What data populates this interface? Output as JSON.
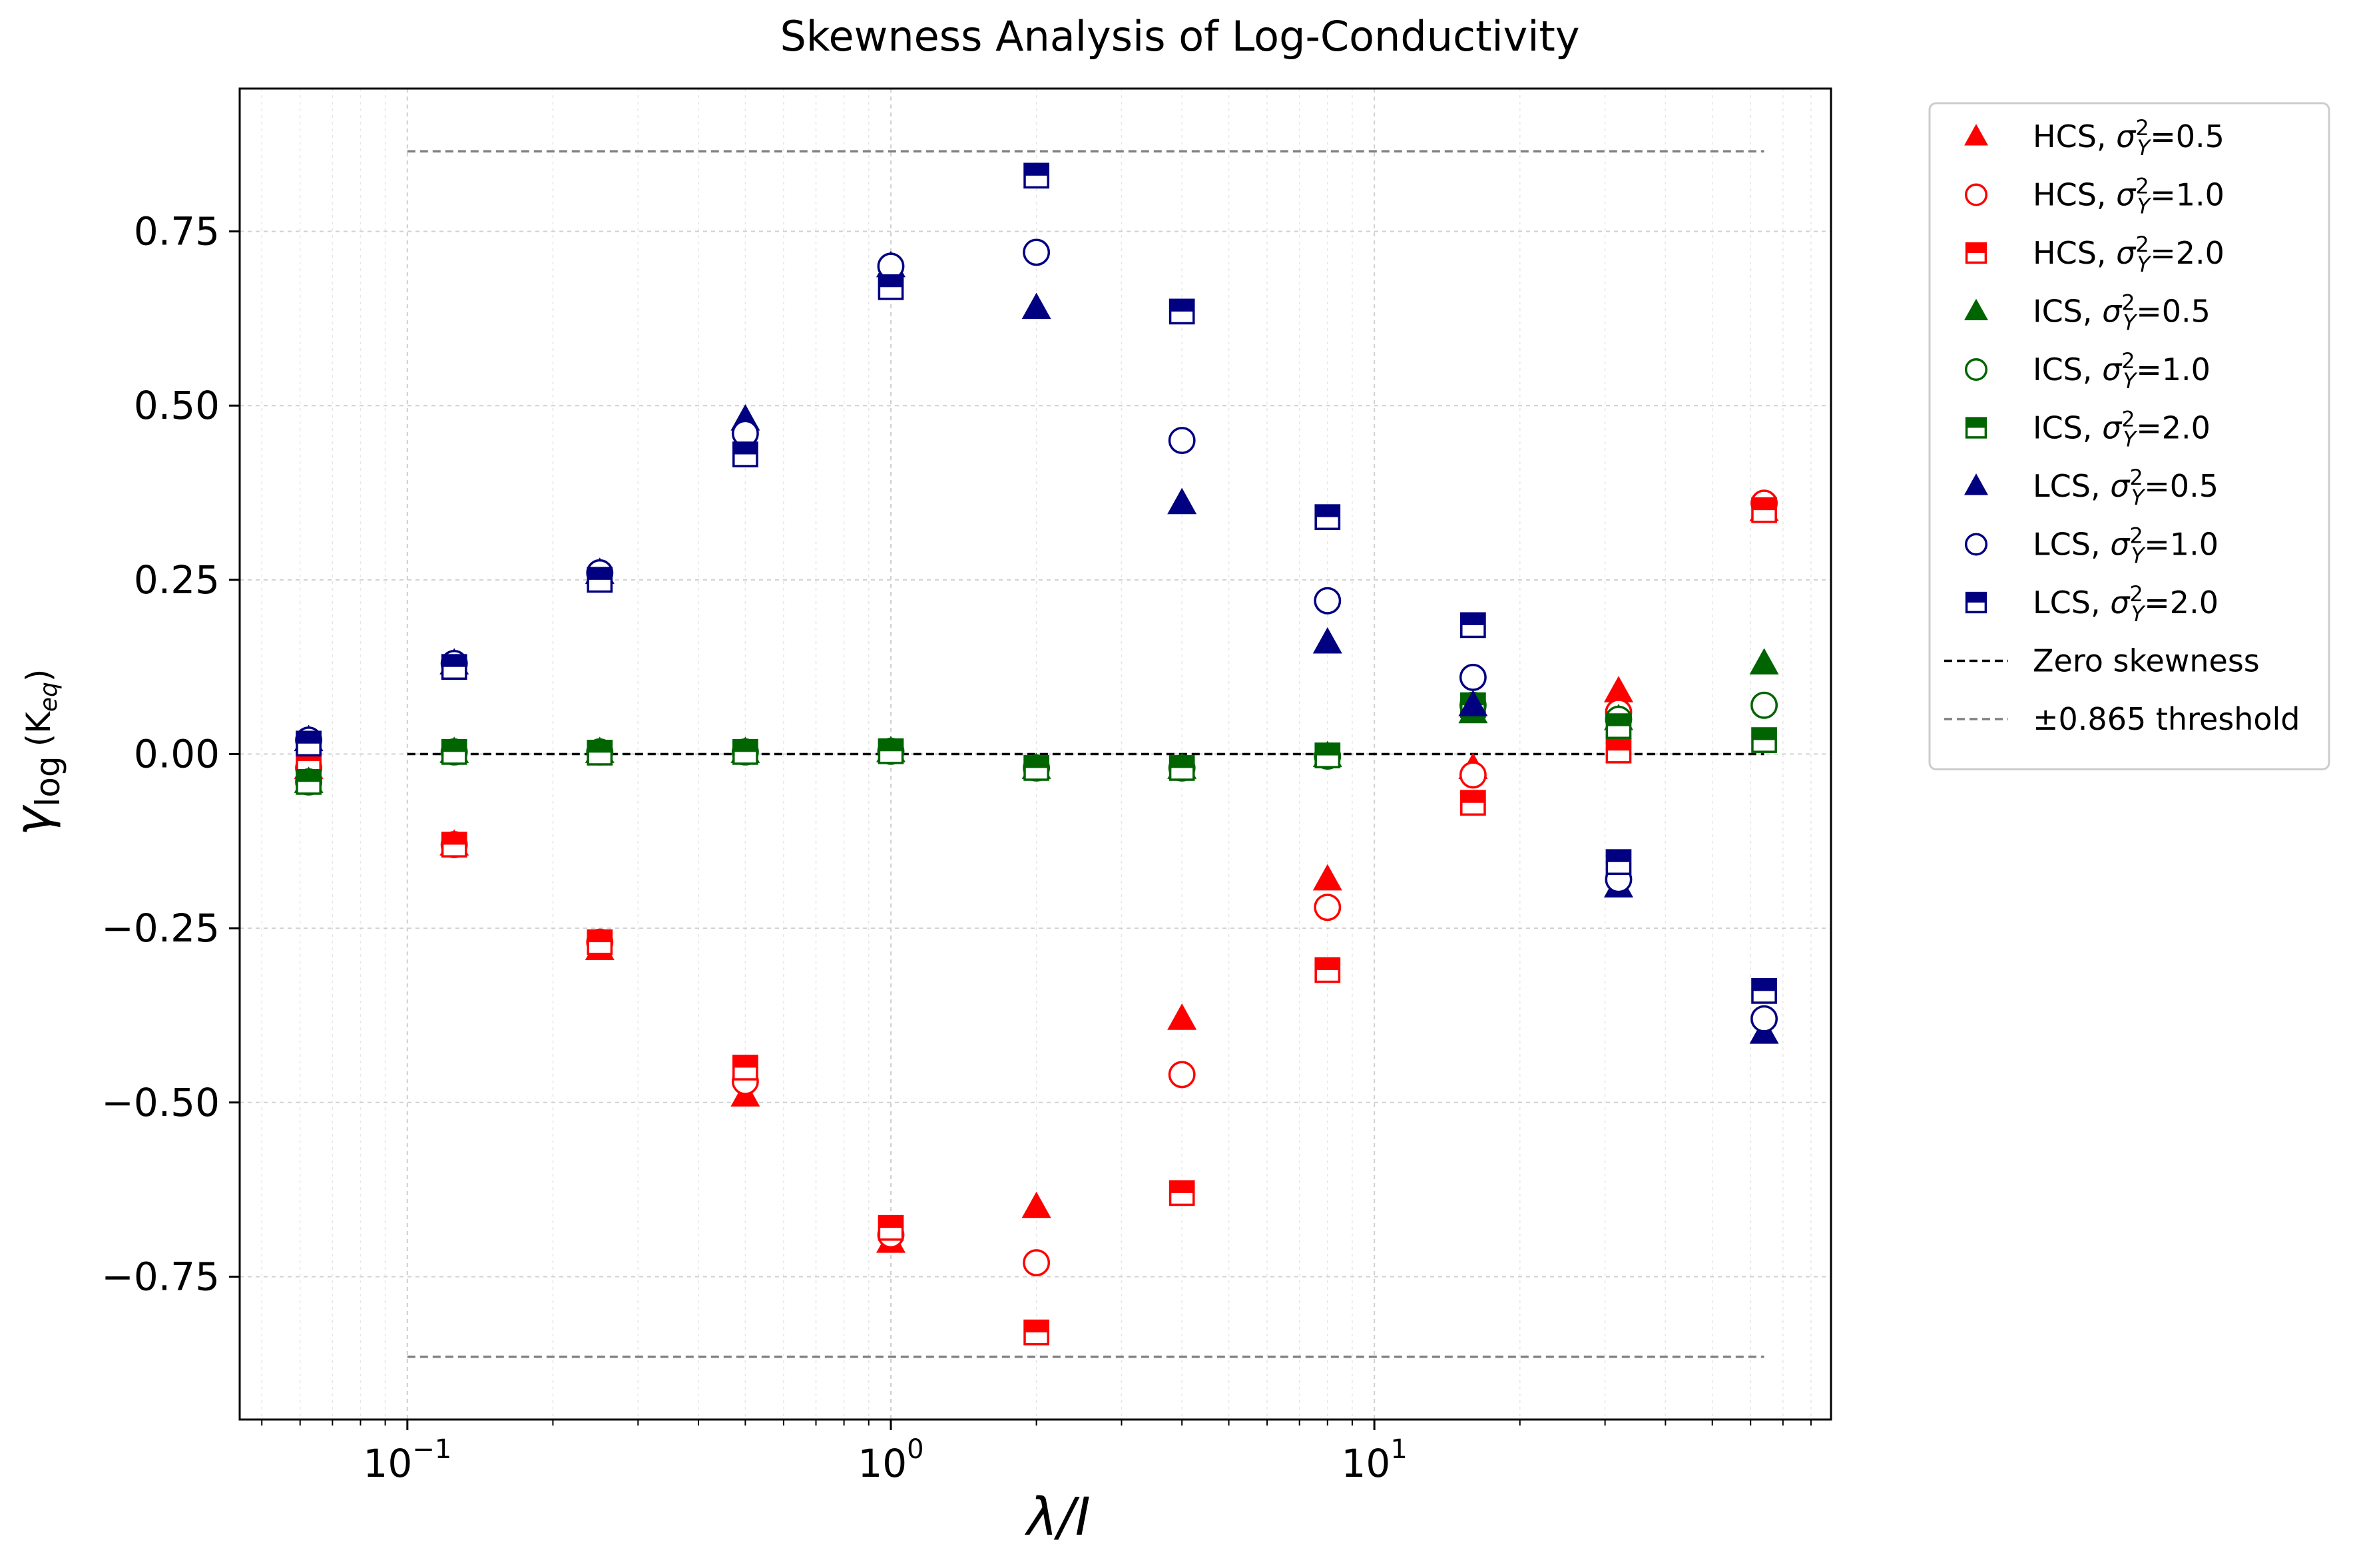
{
  "chart_data": {
    "type": "scatter",
    "title": "Skewness Analysis of Log-Conductivity",
    "xlabel": "λ/I",
    "ylabel": "γ",
    "ylabel_sub": "log",
    "ylabel_arg": "(K",
    "ylabel_arg_sub": "eq",
    "ylabel_arg_close": ")",
    "xscale": "log",
    "xlim": [
      0.045,
      88
    ],
    "ylim": [
      -0.955,
      0.955
    ],
    "x_ticks": [
      0.1,
      1,
      10
    ],
    "x_tick_labels": [
      {
        "base": "10",
        "exp": "−1"
      },
      {
        "base": "10",
        "exp": "0"
      },
      {
        "base": "10",
        "exp": "1"
      }
    ],
    "y_ticks": [
      0.75,
      0.5,
      0.25,
      0.0,
      -0.25,
      -0.5,
      -0.75
    ],
    "y_tick_labels": [
      "0.75",
      "0.50",
      "0.25",
      "0.00",
      "−0.25",
      "−0.50",
      "−0.75"
    ],
    "grid": true,
    "legend_position": "outside-right-top",
    "x": [
      0.0625,
      0.125,
      0.25,
      0.5,
      1,
      2,
      4,
      8,
      16,
      32,
      64
    ],
    "series": [
      {
        "name": "HCS, ",
        "param": "=0.5",
        "color": "#ff0000",
        "marker": "triangle",
        "values": [
          -0.02,
          -0.13,
          -0.28,
          -0.49,
          -0.7,
          -0.65,
          -0.38,
          -0.18,
          -0.02,
          0.09,
          0.35
        ]
      },
      {
        "name": "HCS, ",
        "param": "=1.0",
        "color": "#ff0000",
        "marker": "circle",
        "values": [
          -0.02,
          -0.13,
          -0.27,
          -0.47,
          -0.69,
          -0.73,
          -0.46,
          -0.22,
          -0.03,
          0.06,
          0.36
        ]
      },
      {
        "name": "HCS, ",
        "param": "=2.0",
        "color": "#ff0000",
        "marker": "half-square",
        "values": [
          -0.01,
          -0.13,
          -0.27,
          -0.45,
          -0.68,
          -0.83,
          -0.63,
          -0.31,
          -0.07,
          0.005,
          0.35
        ]
      },
      {
        "name": "ICS, ",
        "param": "=0.5",
        "color": "#006400",
        "marker": "triangle",
        "values": [
          -0.04,
          0.003,
          0.003,
          0.003,
          0.004,
          -0.02,
          -0.02,
          -0.003,
          0.06,
          0.05,
          0.13
        ]
      },
      {
        "name": "ICS, ",
        "param": "=1.0",
        "color": "#006400",
        "marker": "circle",
        "values": [
          -0.04,
          0.003,
          0.003,
          0.003,
          0.004,
          -0.02,
          -0.02,
          -0.003,
          0.07,
          0.05,
          0.07
        ]
      },
      {
        "name": "ICS, ",
        "param": "=2.0",
        "color": "#006400",
        "marker": "half-square",
        "values": [
          -0.04,
          0.003,
          0.002,
          0.003,
          0.004,
          -0.02,
          -0.02,
          -0.002,
          0.07,
          0.04,
          0.02
        ]
      },
      {
        "name": "LCS, ",
        "param": "=0.5",
        "color": "#000080",
        "marker": "triangle",
        "values": [
          0.02,
          0.13,
          0.26,
          0.48,
          0.7,
          0.64,
          0.36,
          0.16,
          0.07,
          -0.19,
          -0.4
        ]
      },
      {
        "name": "LCS, ",
        "param": "=1.0",
        "color": "#000080",
        "marker": "circle",
        "values": [
          0.02,
          0.13,
          0.26,
          0.46,
          0.7,
          0.72,
          0.45,
          0.22,
          0.11,
          -0.18,
          -0.38
        ]
      },
      {
        "name": "LCS, ",
        "param": "=2.0",
        "color": "#000080",
        "marker": "half-square",
        "values": [
          0.015,
          0.125,
          0.25,
          0.43,
          0.67,
          0.83,
          0.635,
          0.34,
          0.185,
          -0.155,
          -0.34
        ]
      }
    ],
    "legend_sigma": "σ",
    "legend_sigma_sup": "2",
    "legend_sigma_sub": "Y",
    "reference_lines": [
      {
        "name": "Zero skewness",
        "y": 0.0,
        "x_range": [
          0.1,
          64
        ],
        "color": "#000000",
        "style": "dashed"
      },
      {
        "name": "±0.865 threshold",
        "y": 0.865,
        "x_range": [
          0.1,
          64
        ],
        "color": "#808080",
        "style": "dashed"
      },
      {
        "name": "",
        "y": -0.865,
        "x_range": [
          0.1,
          64
        ],
        "color": "#808080",
        "style": "dashed"
      }
    ]
  }
}
